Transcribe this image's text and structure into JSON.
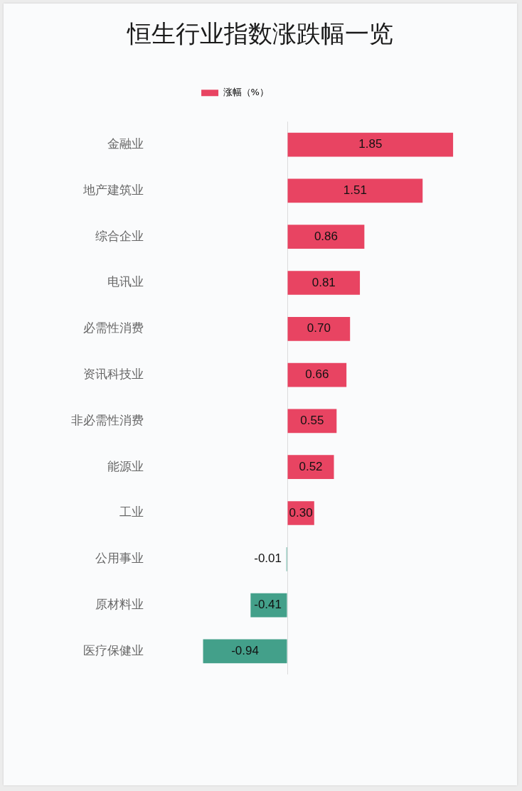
{
  "chart_data": {
    "type": "bar",
    "title": "恒生行业指数涨跌幅一览",
    "orientation": "horizontal",
    "categories": [
      "金融业",
      "地产建筑业",
      "综合企业",
      "电讯业",
      "必需性消费",
      "资讯科技业",
      "非必需性消费",
      "能源业",
      "工业",
      "公用事业",
      "原材料业",
      "医疗保健业"
    ],
    "series": [
      {
        "name": "涨幅（%）",
        "color": "#e84462",
        "colors": [
          "#e84462",
          "#e84462",
          "#e84462",
          "#e84462",
          "#e84462",
          "#e84462",
          "#e84462",
          "#e84462",
          "#e84462",
          "#43a08a",
          "#43a08a",
          "#43a08a"
        ],
        "values": [
          1.85,
          1.51,
          0.86,
          0.81,
          0.7,
          0.66,
          0.55,
          0.52,
          0.3,
          -0.01,
          -0.41,
          -0.94
        ],
        "value_labels": [
          "1.85",
          "1.51",
          "0.86",
          "0.81",
          "0.70",
          "0.66",
          "0.55",
          "0.52",
          "0.30",
          "-0.01",
          "-0.41",
          "-0.94"
        ]
      }
    ],
    "legend": "top",
    "tick_labels": "y"
  }
}
